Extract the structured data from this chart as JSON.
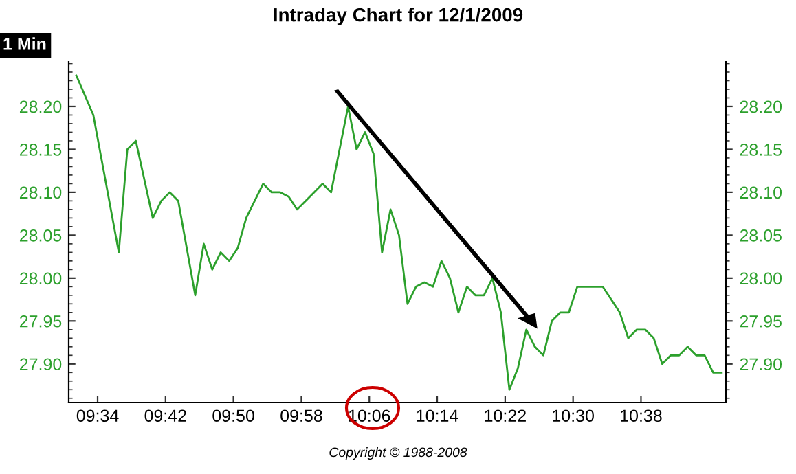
{
  "chart_data": {
    "type": "line",
    "title": "Intraday Chart for 12/1/2009",
    "annotations": [
      "1 Min",
      "Copyright © 1988-2008"
    ],
    "x": [
      9.525,
      9.5583,
      9.6083,
      9.625,
      9.6417,
      9.675,
      9.6917,
      9.7083,
      9.725,
      9.7583,
      9.775,
      9.7917,
      9.8083,
      9.825,
      9.8417,
      9.8583,
      9.8917,
      9.9083,
      9.925,
      9.9417,
      9.9583,
      9.975,
      9.9917,
      10.0083,
      10.025,
      10.0583,
      10.075,
      10.0917,
      10.1083,
      10.125,
      10.1417,
      10.1583,
      10.175,
      10.1917,
      10.2083,
      10.225,
      10.2417,
      10.2583,
      10.275,
      10.2917,
      10.3083,
      10.325,
      10.3417,
      10.3583,
      10.375,
      10.3917,
      10.4083,
      10.425,
      10.4417,
      10.4583,
      10.475,
      10.4917,
      10.5083,
      10.5583,
      10.5917,
      10.6083,
      10.625,
      10.6417,
      10.6583,
      10.675,
      10.6917,
      10.7083,
      10.725,
      10.7417,
      10.7583,
      10.775,
      10.7917
    ],
    "series": [
      {
        "color": "#2ca02c",
        "values": [
          28.236,
          28.19,
          28.03,
          28.15,
          28.16,
          28.07,
          28.09,
          28.1,
          28.09,
          27.98,
          28.04,
          28.01,
          28.03,
          28.02,
          28.035,
          28.07,
          28.11,
          28.1,
          28.1,
          28.095,
          28.08,
          28.09,
          28.1,
          28.11,
          28.1,
          28.2,
          28.15,
          28.17,
          28.145,
          28.03,
          28.08,
          28.05,
          27.97,
          27.99,
          27.995,
          27.99,
          28.02,
          28.0,
          27.96,
          27.99,
          27.98,
          27.98,
          28.0,
          27.96,
          27.87,
          27.895,
          27.94,
          27.92,
          27.91,
          27.95,
          27.96,
          27.96,
          27.99,
          27.99,
          27.96,
          27.93,
          27.94,
          27.94,
          27.93,
          27.9,
          27.91,
          27.91,
          27.92,
          27.91,
          27.91,
          27.89,
          27.89
        ]
      }
    ],
    "xlim": [
      9.51,
      10.8
    ],
    "xticks": [
      {
        "value": 9.5667,
        "label": "09:34"
      },
      {
        "value": 9.7,
        "label": "09:42"
      },
      {
        "value": 9.8333,
        "label": "09:50"
      },
      {
        "value": 9.9667,
        "label": "09:58"
      },
      {
        "value": 10.1,
        "label": "10:06"
      },
      {
        "value": 10.2333,
        "label": "10:14"
      },
      {
        "value": 10.3667,
        "label": "10:22"
      },
      {
        "value": 10.5,
        "label": "10:30"
      },
      {
        "value": 10.6333,
        "label": "10:38"
      }
    ],
    "ylim": [
      27.855,
      28.252
    ],
    "yticks": [
      {
        "value": 27.9,
        "label": "27.90"
      },
      {
        "value": 27.95,
        "label": "27.95"
      },
      {
        "value": 28.0,
        "label": "28.00"
      },
      {
        "value": 28.05,
        "label": "28.05"
      },
      {
        "value": 28.1,
        "label": "28.10"
      },
      {
        "value": 28.15,
        "label": "28.15"
      },
      {
        "value": 28.2,
        "label": "28.20"
      }
    ],
    "y2lim": [
      27.855,
      28.252
    ],
    "y2ticks": [
      {
        "value": 27.9,
        "label": "27.90"
      },
      {
        "value": 27.95,
        "label": "27.95"
      },
      {
        "value": 28.0,
        "label": "28.00"
      },
      {
        "value": 28.05,
        "label": "28.05"
      },
      {
        "value": 28.1,
        "label": "28.10"
      },
      {
        "value": 28.15,
        "label": "28.15"
      },
      {
        "value": 28.2,
        "label": "28.20"
      }
    ],
    "grid": false,
    "legend": false,
    "marker": "none",
    "line_style": "solid"
  }
}
